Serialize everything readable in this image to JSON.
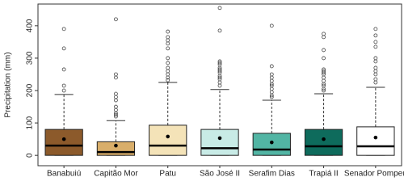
{
  "chart_data": {
    "type": "box",
    "y_label": "Precipitation (mm)",
    "categories": [
      "Banabuiú",
      "Capitão Mor",
      "Patu",
      "São José II",
      "Serafim Dias",
      "Trapiá II",
      "Senador Pompeu"
    ],
    "boxes": [
      {
        "min": 0,
        "q1": 0,
        "median": 30,
        "q3": 80,
        "max": 188,
        "mean": 50,
        "color": "#8c5a2b",
        "outliers": [
          390,
          330,
          265,
          215,
          200
        ]
      },
      {
        "min": 0,
        "q1": 0,
        "median": 10,
        "q3": 42,
        "max": 107,
        "mean": 30,
        "color": "#d9ae6a",
        "outliers": [
          420,
          250,
          240,
          190,
          180,
          170,
          150,
          140,
          130,
          125,
          120
        ]
      },
      {
        "min": 0,
        "q1": 0,
        "median": 30,
        "q3": 93,
        "max": 225,
        "mean": 58,
        "color": "#f4e3b8",
        "outliers": [
          382,
          365,
          355,
          345,
          330,
          300,
          285,
          270,
          260,
          250,
          240,
          232
        ]
      },
      {
        "min": 0,
        "q1": 0,
        "median": 22,
        "q3": 80,
        "max": 203,
        "mean": 53,
        "color": "#c8ebe6",
        "outliers": [
          455,
          385,
          290,
          285,
          280,
          270,
          265,
          260,
          255,
          245,
          240,
          235,
          225,
          215
        ]
      },
      {
        "min": 0,
        "q1": 0,
        "median": 18,
        "q3": 68,
        "max": 170,
        "mean": 40,
        "color": "#52b5a4",
        "outliers": [
          400,
          275,
          250,
          240,
          230,
          220,
          215,
          205,
          195,
          185,
          180
        ]
      },
      {
        "min": 0,
        "q1": 0,
        "median": 28,
        "q3": 80,
        "max": 190,
        "mean": 50,
        "color": "#0e6b5c",
        "outliers": [
          375,
          365,
          325,
          300,
          265,
          260,
          255,
          250,
          240,
          230,
          220,
          215,
          205,
          200
        ]
      },
      {
        "min": 0,
        "q1": 0,
        "median": 28,
        "q3": 88,
        "max": 210,
        "mean": 55,
        "color": "#ffffff",
        "outliers": [
          390,
          370,
          350,
          335,
          300,
          290,
          270,
          260,
          250,
          235,
          225
        ]
      }
    ],
    "ylim": [
      -32,
      467
    ],
    "yticks": [
      0,
      100,
      200,
      300,
      400
    ]
  }
}
